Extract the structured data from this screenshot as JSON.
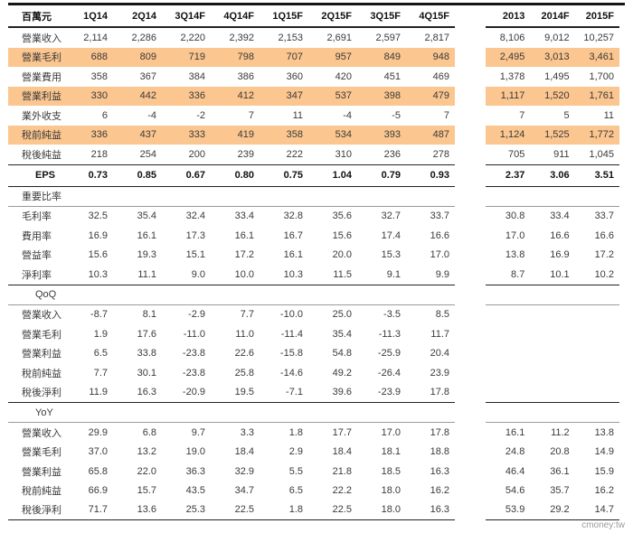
{
  "page": {
    "watermark": "cmoney:tw"
  },
  "table": {
    "unit_label": "百萬元",
    "highlight_color": "#fbc68f",
    "quarter_headers": [
      "1Q14",
      "2Q14",
      "3Q14F",
      "4Q14F",
      "1Q15F",
      "2Q15F",
      "3Q15F",
      "4Q15F"
    ],
    "annual_headers": [
      "2013",
      "2014F",
      "2015F"
    ],
    "sections": [
      {
        "name": "",
        "indent": false,
        "rows": [
          {
            "label": "營業收入",
            "q": [
              "2,114",
              "2,286",
              "2,220",
              "2,392",
              "2,153",
              "2,691",
              "2,597",
              "2,817"
            ],
            "a": [
              "8,106",
              "9,012",
              "10,257"
            ],
            "highlight": false,
            "emphasis": false
          },
          {
            "label": "營業毛利",
            "q": [
              "688",
              "809",
              "719",
              "798",
              "707",
              "957",
              "849",
              "948"
            ],
            "a": [
              "2,495",
              "3,013",
              "3,461"
            ],
            "highlight": true,
            "emphasis": false
          },
          {
            "label": "營業費用",
            "q": [
              "358",
              "367",
              "384",
              "386",
              "360",
              "420",
              "451",
              "469"
            ],
            "a": [
              "1,378",
              "1,495",
              "1,700"
            ],
            "highlight": false,
            "emphasis": false
          },
          {
            "label": "營業利益",
            "q": [
              "330",
              "442",
              "336",
              "412",
              "347",
              "537",
              "398",
              "479"
            ],
            "a": [
              "1,117",
              "1,520",
              "1,761"
            ],
            "highlight": true,
            "emphasis": false
          },
          {
            "label": "業外收支",
            "q": [
              "6",
              "-4",
              "-2",
              "7",
              "11",
              "-4",
              "-5",
              "7"
            ],
            "a": [
              "7",
              "5",
              "11"
            ],
            "highlight": false,
            "emphasis": false
          },
          {
            "label": "稅前純益",
            "q": [
              "336",
              "437",
              "333",
              "419",
              "358",
              "534",
              "393",
              "487"
            ],
            "a": [
              "1,124",
              "1,525",
              "1,772"
            ],
            "highlight": true,
            "emphasis": false
          },
          {
            "label": "稅後純益",
            "q": [
              "218",
              "254",
              "200",
              "239",
              "222",
              "310",
              "236",
              "278"
            ],
            "a": [
              "705",
              "911",
              "1,045"
            ],
            "highlight": false,
            "emphasis": false
          },
          {
            "label": "EPS",
            "q": [
              "0.73",
              "0.85",
              "0.67",
              "0.80",
              "0.75",
              "1.04",
              "0.79",
              "0.93"
            ],
            "a": [
              "2.37",
              "3.06",
              "3.51"
            ],
            "highlight": false,
            "emphasis": true
          }
        ]
      },
      {
        "name": "重要比率",
        "indent": false,
        "rows": [
          {
            "label": "毛利率",
            "q": [
              "32.5",
              "35.4",
              "32.4",
              "33.4",
              "32.8",
              "35.6",
              "32.7",
              "33.7"
            ],
            "a": [
              "30.8",
              "33.4",
              "33.7"
            ],
            "highlight": false,
            "emphasis": false
          },
          {
            "label": "費用率",
            "q": [
              "16.9",
              "16.1",
              "17.3",
              "16.1",
              "16.7",
              "15.6",
              "17.4",
              "16.6"
            ],
            "a": [
              "17.0",
              "16.6",
              "16.6"
            ],
            "highlight": false,
            "emphasis": false
          },
          {
            "label": "營益率",
            "q": [
              "15.6",
              "19.3",
              "15.1",
              "17.2",
              "16.1",
              "20.0",
              "15.3",
              "17.0"
            ],
            "a": [
              "13.8",
              "16.9",
              "17.2"
            ],
            "highlight": false,
            "emphasis": false
          },
          {
            "label": "淨利率",
            "q": [
              "10.3",
              "11.1",
              "9.0",
              "10.0",
              "10.3",
              "11.5",
              "9.1",
              "9.9"
            ],
            "a": [
              "8.7",
              "10.1",
              "10.2"
            ],
            "highlight": false,
            "emphasis": false
          }
        ]
      },
      {
        "name": "QoQ",
        "indent": true,
        "rows": [
          {
            "label": "營業收入",
            "q": [
              "-8.7",
              "8.1",
              "-2.9",
              "7.7",
              "-10.0",
              "25.0",
              "-3.5",
              "8.5"
            ],
            "a": [
              "",
              "",
              ""
            ],
            "highlight": false,
            "emphasis": false
          },
          {
            "label": "營業毛利",
            "q": [
              "1.9",
              "17.6",
              "-11.0",
              "11.0",
              "-11.4",
              "35.4",
              "-11.3",
              "11.7"
            ],
            "a": [
              "",
              "",
              ""
            ],
            "highlight": false,
            "emphasis": false
          },
          {
            "label": "營業利益",
            "q": [
              "6.5",
              "33.8",
              "-23.8",
              "22.6",
              "-15.8",
              "54.8",
              "-25.9",
              "20.4"
            ],
            "a": [
              "",
              "",
              ""
            ],
            "highlight": false,
            "emphasis": false
          },
          {
            "label": "稅前純益",
            "q": [
              "7.7",
              "30.1",
              "-23.8",
              "25.8",
              "-14.6",
              "49.2",
              "-26.4",
              "23.9"
            ],
            "a": [
              "",
              "",
              ""
            ],
            "highlight": false,
            "emphasis": false
          },
          {
            "label": "稅後淨利",
            "q": [
              "11.9",
              "16.3",
              "-20.9",
              "19.5",
              "-7.1",
              "39.6",
              "-23.9",
              "17.8"
            ],
            "a": [
              "",
              "",
              ""
            ],
            "highlight": false,
            "emphasis": false
          }
        ]
      },
      {
        "name": "YoY",
        "indent": true,
        "rows": [
          {
            "label": "營業收入",
            "q": [
              "29.9",
              "6.8",
              "9.7",
              "3.3",
              "1.8",
              "17.7",
              "17.0",
              "17.8"
            ],
            "a": [
              "16.1",
              "11.2",
              "13.8"
            ],
            "highlight": false,
            "emphasis": false
          },
          {
            "label": "營業毛利",
            "q": [
              "37.0",
              "13.2",
              "19.0",
              "18.4",
              "2.9",
              "18.4",
              "18.1",
              "18.8"
            ],
            "a": [
              "24.8",
              "20.8",
              "14.9"
            ],
            "highlight": false,
            "emphasis": false
          },
          {
            "label": "營業利益",
            "q": [
              "65.8",
              "22.0",
              "36.3",
              "32.9",
              "5.5",
              "21.8",
              "18.5",
              "16.3"
            ],
            "a": [
              "46.4",
              "36.1",
              "15.9"
            ],
            "highlight": false,
            "emphasis": false
          },
          {
            "label": "稅前純益",
            "q": [
              "66.9",
              "15.7",
              "43.5",
              "34.7",
              "6.5",
              "22.2",
              "18.0",
              "16.2"
            ],
            "a": [
              "54.6",
              "35.7",
              "16.2"
            ],
            "highlight": false,
            "emphasis": false
          },
          {
            "label": "稅後淨利",
            "q": [
              "71.7",
              "13.6",
              "25.3",
              "22.5",
              "1.8",
              "22.5",
              "18.0",
              "16.3"
            ],
            "a": [
              "53.9",
              "29.2",
              "14.7"
            ],
            "highlight": false,
            "emphasis": false
          }
        ]
      }
    ]
  }
}
